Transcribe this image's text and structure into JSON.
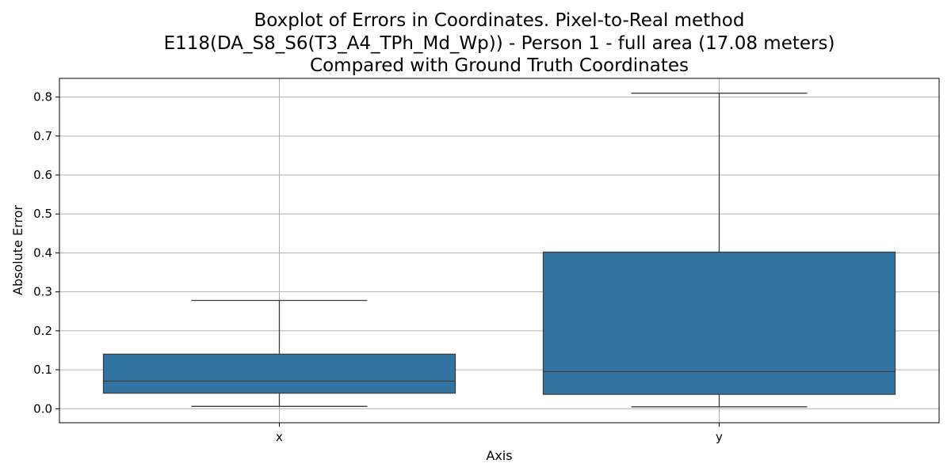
{
  "chart_data": {
    "type": "box",
    "title_lines": [
      "Boxplot of Errors in Coordinates. Pixel-to-Real method",
      "E118(DA_S8_S6(T3_A4_TPh_Md_Wp)) - Person 1 - full area (17.08 meters)",
      "Compared with Ground Truth Coordinates"
    ],
    "xlabel": "Axis",
    "ylabel": "Absolute Error",
    "categories": [
      "x",
      "y"
    ],
    "boxes": [
      {
        "category": "x",
        "whisker_low": 0.006,
        "q1": 0.04,
        "median": 0.071,
        "q3": 0.14,
        "whisker_high": 0.278
      },
      {
        "category": "y",
        "whisker_low": 0.005,
        "q1": 0.037,
        "median": 0.095,
        "q3": 0.402,
        "whisker_high": 0.81
      }
    ],
    "yticks": [
      0.0,
      0.1,
      0.2,
      0.3,
      0.4,
      0.5,
      0.6,
      0.7,
      0.8
    ],
    "ytick_labels": [
      "0.0",
      "0.1",
      "0.2",
      "0.3",
      "0.4",
      "0.5",
      "0.6",
      "0.7",
      "0.8"
    ],
    "ylim": [
      -0.036,
      0.848
    ],
    "grid": true,
    "colors": {
      "box_fill": "#3274a1",
      "line": "#3d3d3d",
      "grid": "#b0b0b0"
    }
  }
}
